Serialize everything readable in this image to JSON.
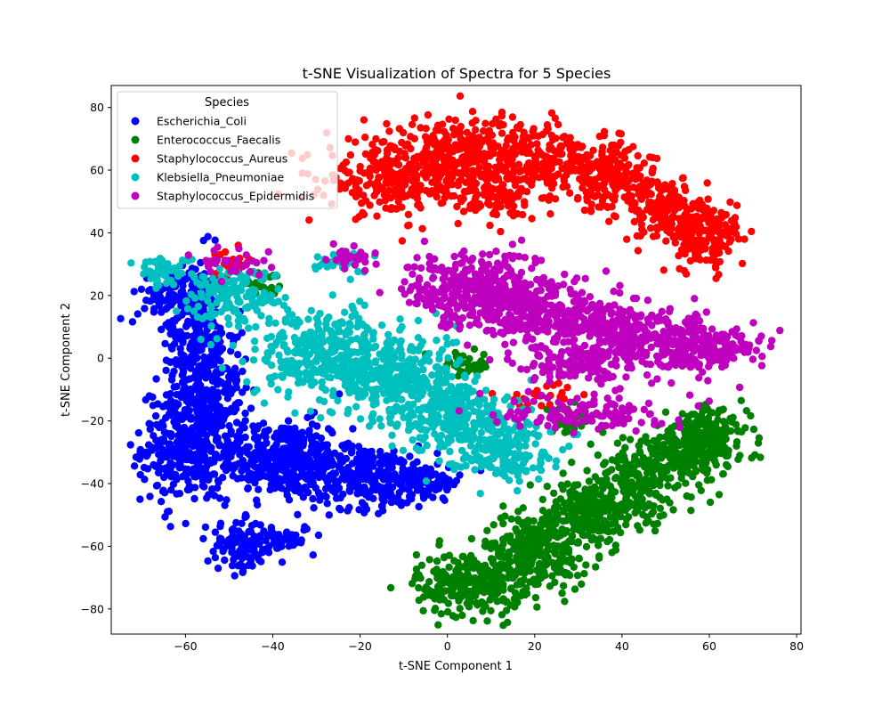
{
  "chart_data": {
    "type": "scatter",
    "title": "t-SNE Visualization of Spectra for 5 Species",
    "xlabel": "t-SNE Component 1",
    "ylabel": "t-SNE Component 2",
    "xlim": [
      -77,
      81
    ],
    "ylim": [
      -88,
      87
    ],
    "xticks": [
      -60,
      -40,
      -20,
      0,
      20,
      40,
      60,
      80
    ],
    "yticks": [
      -80,
      -60,
      -40,
      -20,
      0,
      20,
      40,
      60,
      80
    ],
    "grid": false,
    "legend": {
      "title": "Species",
      "placement": "top-left"
    },
    "series": [
      {
        "name": "Escherichia_Coli",
        "color": "#0000ff",
        "clusters": [
          {
            "cx": -58,
            "cy": 5,
            "sx": 3.5,
            "sy": 14,
            "n": 260
          },
          {
            "cx": -60,
            "cy": -28,
            "sx": 5,
            "sy": 9,
            "n": 320
          },
          {
            "cx": -38,
            "cy": -32,
            "sx": 8,
            "sy": 6,
            "n": 380
          },
          {
            "cx": -18,
            "cy": -38,
            "sx": 8,
            "sy": 5,
            "n": 300
          },
          {
            "cx": -3,
            "cy": -40,
            "sx": 3,
            "sy": 2,
            "n": 60
          },
          {
            "cx": -47,
            "cy": -60,
            "sx": 4,
            "sy": 4,
            "n": 120
          },
          {
            "cx": -37,
            "cy": -57,
            "sx": 3,
            "sy": 2,
            "n": 40
          },
          {
            "cx": -63,
            "cy": 20,
            "sx": 4,
            "sy": 4,
            "n": 80
          },
          {
            "cx": -52,
            "cy": -10,
            "sx": 3,
            "sy": 10,
            "n": 120
          }
        ]
      },
      {
        "name": "Enterococcus_Faecalis",
        "color": "#008000",
        "clusters": [
          {
            "cx": 5,
            "cy": -72,
            "sx": 6,
            "sy": 5,
            "n": 260
          },
          {
            "cx": 20,
            "cy": -62,
            "sx": 6,
            "sy": 6,
            "n": 260
          },
          {
            "cx": 32,
            "cy": -50,
            "sx": 6,
            "sy": 6,
            "n": 220
          },
          {
            "cx": 45,
            "cy": -38,
            "sx": 6,
            "sy": 6,
            "n": 220
          },
          {
            "cx": 57,
            "cy": -28,
            "sx": 6,
            "sy": 5,
            "n": 200
          },
          {
            "cx": 60,
            "cy": -22,
            "sx": 4,
            "sy": 3,
            "n": 60
          },
          {
            "cx": 4,
            "cy": -2,
            "sx": 3,
            "sy": 2,
            "n": 40
          },
          {
            "cx": -43,
            "cy": 23,
            "sx": 3,
            "sy": 2,
            "n": 25
          },
          {
            "cx": 28,
            "cy": -20,
            "sx": 3,
            "sy": 2,
            "n": 25
          }
        ]
      },
      {
        "name": "Staphylococcus_Aureus",
        "color": "#ff0000",
        "clusters": [
          {
            "cx": -12,
            "cy": 58,
            "sx": 8,
            "sy": 6,
            "n": 280
          },
          {
            "cx": 5,
            "cy": 65,
            "sx": 7,
            "sy": 7,
            "n": 260
          },
          {
            "cx": 25,
            "cy": 62,
            "sx": 7,
            "sy": 6,
            "n": 220
          },
          {
            "cx": 38,
            "cy": 57,
            "sx": 5,
            "sy": 5,
            "n": 160
          },
          {
            "cx": 50,
            "cy": 47,
            "sx": 5,
            "sy": 5,
            "n": 160
          },
          {
            "cx": 60,
            "cy": 38,
            "sx": 4,
            "sy": 5,
            "n": 140
          },
          {
            "cx": 10,
            "cy": 52,
            "sx": 4,
            "sy": 3,
            "n": 80
          },
          {
            "cx": -50,
            "cy": 31,
            "sx": 3,
            "sy": 2,
            "n": 25
          },
          {
            "cx": 22,
            "cy": -12,
            "sx": 4,
            "sy": 2,
            "n": 25
          }
        ]
      },
      {
        "name": "Klebsiella_Pneumoniae",
        "color": "#00bfbf",
        "clusters": [
          {
            "cx": -28,
            "cy": 2,
            "sx": 8,
            "sy": 7,
            "n": 300
          },
          {
            "cx": -12,
            "cy": -5,
            "sx": 7,
            "sy": 7,
            "n": 300
          },
          {
            "cx": 0,
            "cy": -18,
            "sx": 7,
            "sy": 6,
            "n": 260
          },
          {
            "cx": 12,
            "cy": -28,
            "sx": 6,
            "sy": 5,
            "n": 200
          },
          {
            "cx": -50,
            "cy": 20,
            "sx": 6,
            "sy": 5,
            "n": 160
          },
          {
            "cx": -65,
            "cy": 28,
            "sx": 3,
            "sy": 2,
            "n": 50
          },
          {
            "cx": -25,
            "cy": 31,
            "sx": 4,
            "sy": 2,
            "n": 30
          }
        ]
      },
      {
        "name": "Staphylococcus_Epidermidis",
        "color": "#bf00bf",
        "clusters": [
          {
            "cx": 5,
            "cy": 22,
            "sx": 7,
            "sy": 6,
            "n": 300
          },
          {
            "cx": 20,
            "cy": 15,
            "sx": 7,
            "sy": 6,
            "n": 260
          },
          {
            "cx": 35,
            "cy": 10,
            "sx": 7,
            "sy": 5,
            "n": 220
          },
          {
            "cx": 48,
            "cy": 5,
            "sx": 7,
            "sy": 5,
            "n": 200
          },
          {
            "cx": 62,
            "cy": 3,
            "sx": 5,
            "sy": 3,
            "n": 140
          },
          {
            "cx": 30,
            "cy": -3,
            "sx": 6,
            "sy": 3,
            "n": 100
          },
          {
            "cx": 32,
            "cy": -17,
            "sx": 9,
            "sy": 3,
            "n": 120
          },
          {
            "cx": -22,
            "cy": 32,
            "sx": 3,
            "sy": 2,
            "n": 30
          },
          {
            "cx": -48,
            "cy": 31,
            "sx": 4,
            "sy": 2,
            "n": 30
          }
        ]
      }
    ]
  }
}
